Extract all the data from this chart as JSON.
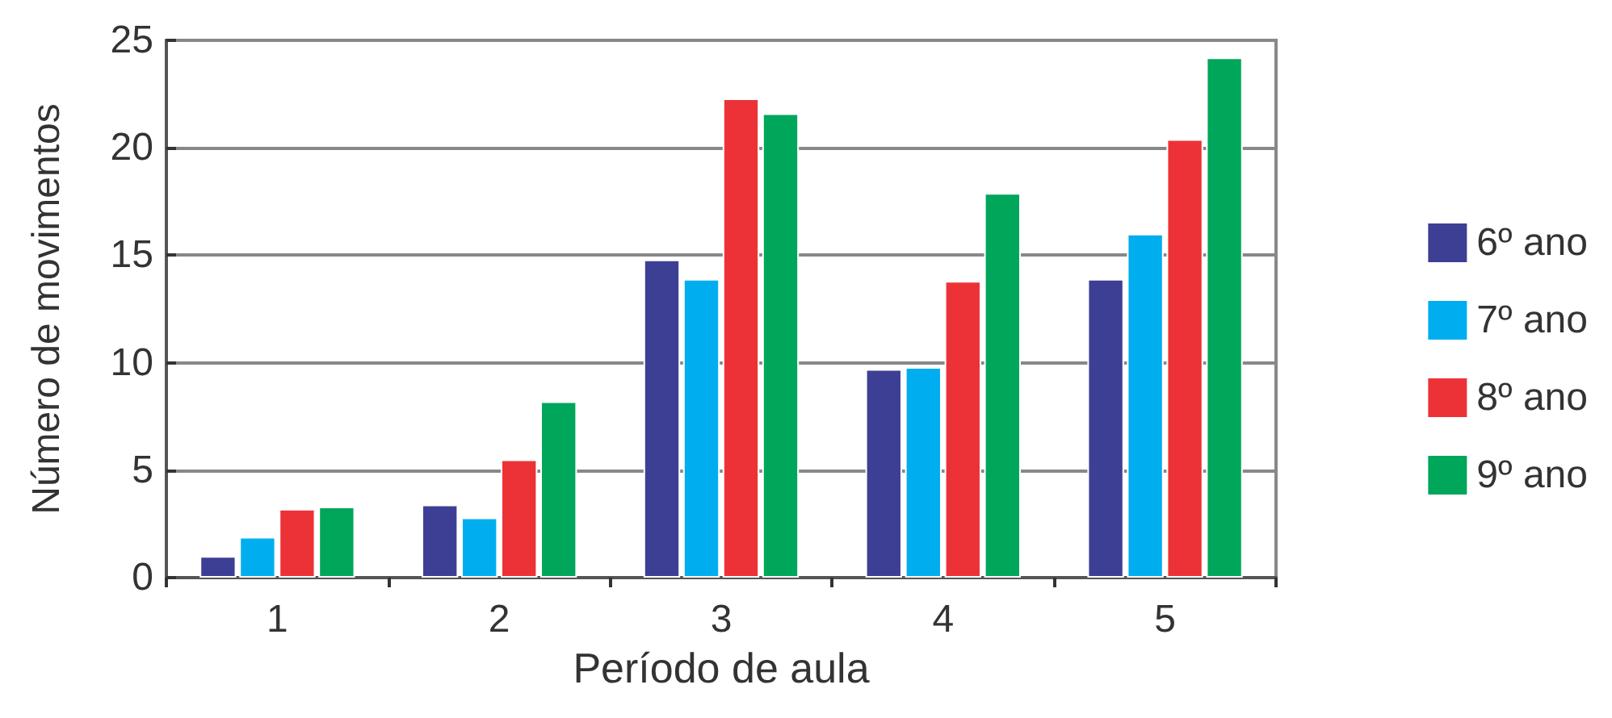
{
  "chart_data": {
    "type": "bar",
    "xlabel": "Período de aula",
    "ylabel": "Número de movimentos",
    "categories": [
      "1",
      "2",
      "3",
      "4",
      "5"
    ],
    "series": [
      {
        "name": "6º ano",
        "color": "#3d3f95",
        "values": [
          1.0,
          3.4,
          14.8,
          9.7,
          13.9
        ]
      },
      {
        "name": "7º ano",
        "color": "#00aeef",
        "values": [
          1.9,
          2.8,
          13.9,
          9.8,
          16.0
        ]
      },
      {
        "name": "8º ano",
        "color": "#ed3237",
        "values": [
          3.2,
          5.5,
          22.3,
          13.8,
          20.4
        ]
      },
      {
        "name": "9º ano",
        "color": "#00a65a",
        "values": [
          3.3,
          8.2,
          21.6,
          17.9,
          24.2
        ]
      }
    ],
    "ylim": [
      0,
      25
    ],
    "yticks": [
      0,
      5,
      10,
      15,
      20,
      25
    ],
    "grid": "y",
    "legend": "right"
  }
}
